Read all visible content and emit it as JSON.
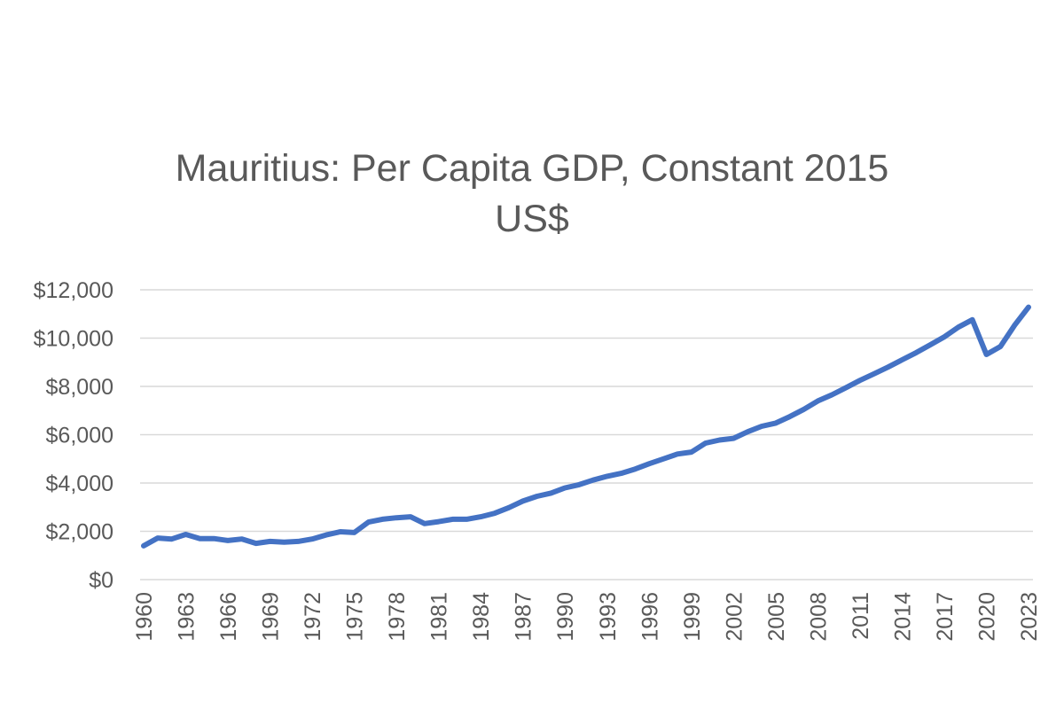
{
  "chart_data": {
    "type": "line",
    "title_line1": "Mauritius: Per Capita GDP, Constant 2015",
    "title_line2": "US$",
    "xlabel": "",
    "ylabel": "",
    "ylim": [
      0,
      12000
    ],
    "y_ticks": [
      0,
      2000,
      4000,
      6000,
      8000,
      10000,
      12000
    ],
    "y_tick_labels": [
      "$0",
      "$2,000",
      "$4,000",
      "$6,000",
      "$8,000",
      "$10,000",
      "$12,000"
    ],
    "x_tick_labels": [
      "1960",
      "1963",
      "1966",
      "1969",
      "1972",
      "1975",
      "1978",
      "1981",
      "1984",
      "1987",
      "1990",
      "1993",
      "1996",
      "1999",
      "2002",
      "2005",
      "2008",
      "2011",
      "2014",
      "2017",
      "2020",
      "2023"
    ],
    "x": [
      1960,
      1961,
      1962,
      1963,
      1964,
      1965,
      1966,
      1967,
      1968,
      1969,
      1970,
      1971,
      1972,
      1973,
      1974,
      1975,
      1976,
      1977,
      1978,
      1979,
      1980,
      1981,
      1982,
      1983,
      1984,
      1985,
      1986,
      1987,
      1988,
      1989,
      1990,
      1991,
      1992,
      1993,
      1994,
      1995,
      1996,
      1997,
      1998,
      1999,
      2000,
      2001,
      2002,
      2003,
      2004,
      2005,
      2006,
      2007,
      2008,
      2009,
      2010,
      2011,
      2012,
      2013,
      2014,
      2015,
      2016,
      2017,
      2018,
      2019,
      2020,
      2021,
      2022,
      2023
    ],
    "series": [
      {
        "values": [
          1400,
          1720,
          1680,
          1870,
          1700,
          1700,
          1620,
          1680,
          1500,
          1580,
          1550,
          1580,
          1680,
          1850,
          1980,
          1950,
          2380,
          2500,
          2560,
          2600,
          2320,
          2400,
          2500,
          2500,
          2600,
          2750,
          2980,
          3250,
          3450,
          3580,
          3800,
          3930,
          4120,
          4280,
          4400,
          4580,
          4800,
          5000,
          5200,
          5280,
          5650,
          5780,
          5850,
          6120,
          6350,
          6480,
          6750,
          7050,
          7400,
          7650,
          7950,
          8250,
          8520,
          8800,
          9100,
          9400,
          9720,
          10050,
          10450,
          10760,
          9320,
          9650,
          10530,
          11280
        ],
        "color": "#4472c4"
      }
    ]
  }
}
